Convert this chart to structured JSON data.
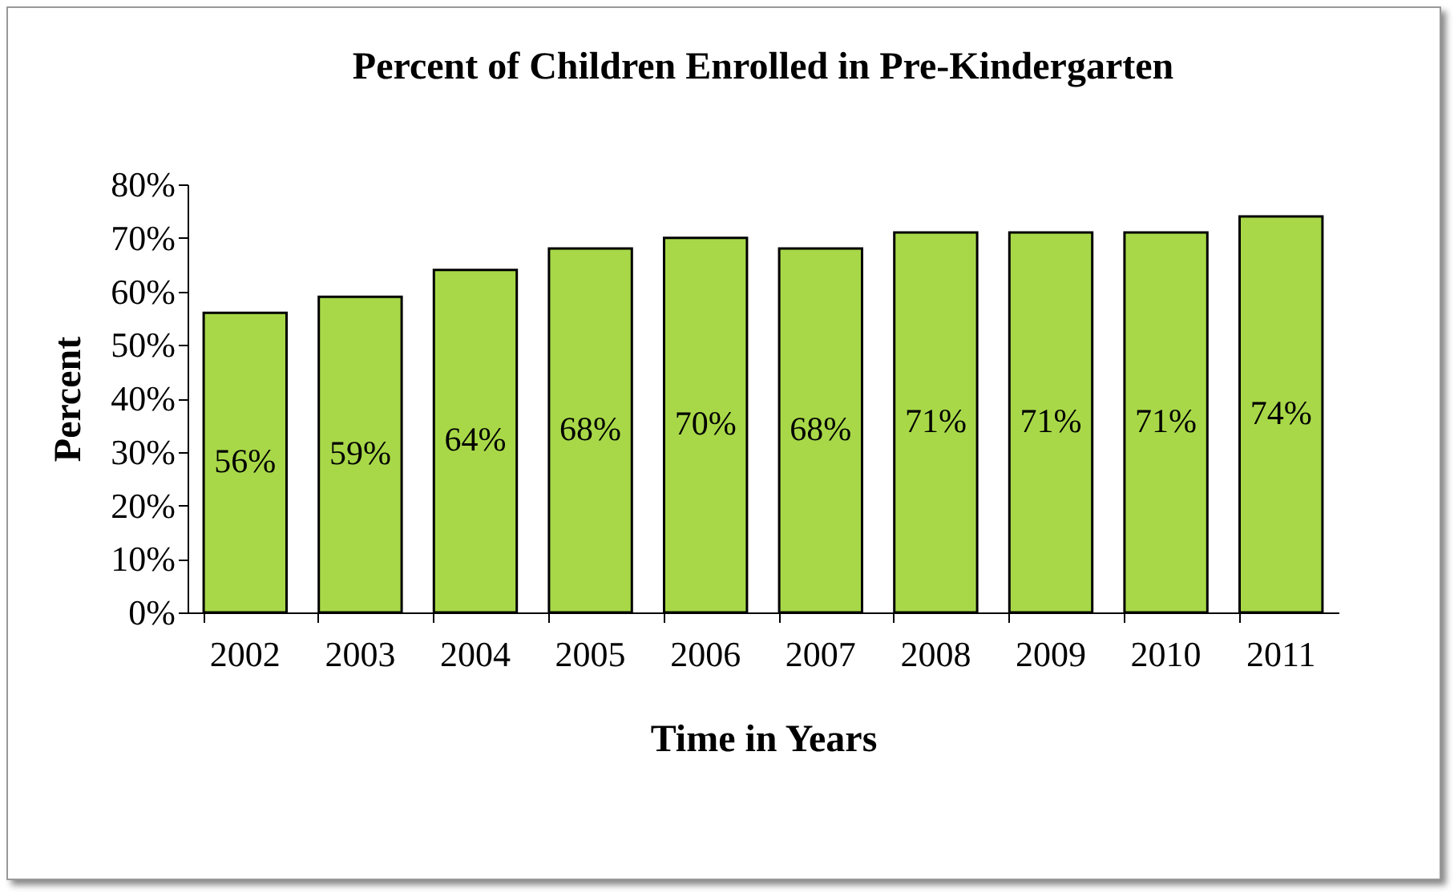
{
  "chart_data": {
    "type": "bar",
    "title": "Percent of Children Enrolled in Pre-Kindergarten",
    "xlabel": "Time in Years",
    "ylabel": "Percent",
    "categories": [
      "2002",
      "2003",
      "2004",
      "2005",
      "2006",
      "2007",
      "2008",
      "2009",
      "2010",
      "2011"
    ],
    "values": [
      56,
      59,
      64,
      68,
      70,
      68,
      71,
      71,
      71,
      74
    ],
    "value_labels": [
      "56%",
      "59%",
      "64%",
      "68%",
      "70%",
      "68%",
      "71%",
      "71%",
      "71%",
      "74%"
    ],
    "color": "#a8d848",
    "ylim": [
      0,
      80
    ],
    "yticks": [
      {
        "value": 0,
        "label": "0%"
      },
      {
        "value": 10,
        "label": "10%"
      },
      {
        "value": 20,
        "label": "20%"
      },
      {
        "value": 30,
        "label": "30%"
      },
      {
        "value": 40,
        "label": "40%"
      },
      {
        "value": 50,
        "label": "50%"
      },
      {
        "value": 60,
        "label": "60%"
      },
      {
        "value": 70,
        "label": "70%"
      },
      {
        "value": 80,
        "label": "80%"
      }
    ],
    "grid": false
  }
}
